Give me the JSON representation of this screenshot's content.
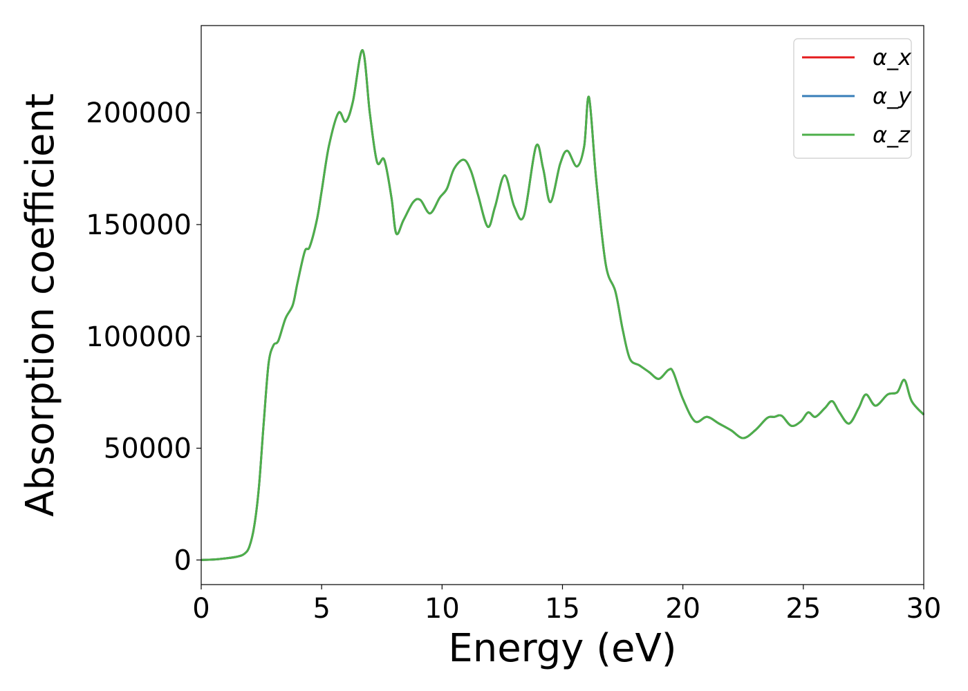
{
  "chart_data": {
    "type": "line",
    "xlabel": "Energy (eV)",
    "ylabel": "Absorption coefficient",
    "xlim": [
      0,
      30
    ],
    "ylim": [
      -11000,
      239000
    ],
    "xticks": [
      0,
      5,
      10,
      15,
      20,
      25,
      30
    ],
    "yticks": [
      0,
      50000,
      100000,
      150000,
      200000
    ],
    "grid": false,
    "legend": {
      "position": "top-right"
    },
    "x": [
      0,
      0.5,
      1.0,
      1.5,
      1.8,
      2.0,
      2.2,
      2.4,
      2.6,
      2.8,
      3.0,
      3.2,
      3.5,
      3.8,
      4.0,
      4.3,
      4.5,
      4.8,
      5.0,
      5.3,
      5.7,
      6.0,
      6.3,
      6.7,
      7.0,
      7.3,
      7.6,
      7.9,
      8.1,
      8.4,
      8.8,
      9.1,
      9.5,
      9.9,
      10.2,
      10.5,
      10.9,
      11.2,
      11.5,
      11.9,
      12.2,
      12.6,
      13.0,
      13.4,
      13.9,
      14.2,
      14.5,
      14.9,
      15.2,
      15.6,
      15.9,
      16.1,
      16.4,
      16.8,
      17.2,
      17.5,
      17.8,
      18.2,
      18.6,
      19.0,
      19.4,
      19.6,
      20.0,
      20.5,
      21.0,
      21.5,
      22.0,
      22.5,
      23.0,
      23.5,
      23.8,
      24.1,
      24.5,
      24.9,
      25.2,
      25.5,
      25.9,
      26.2,
      26.5,
      26.9,
      27.3,
      27.6,
      28.0,
      28.5,
      28.9,
      29.2,
      29.5,
      30.0
    ],
    "series": [
      {
        "name": "α_x",
        "color": "#e41a1c",
        "values": [
          0,
          200,
          700,
          1500,
          2800,
          6000,
          15000,
          33000,
          62000,
          88000,
          96000,
          98000,
          108000,
          114000,
          124000,
          138000,
          140000,
          152000,
          165000,
          185000,
          200000,
          196000,
          205000,
          228000,
          200000,
          178000,
          179000,
          162000,
          146000,
          152000,
          160000,
          161000,
          155000,
          162000,
          166000,
          175000,
          179000,
          174000,
          163000,
          149000,
          158000,
          172000,
          158000,
          154000,
          185000,
          175000,
          160000,
          177000,
          183000,
          176000,
          185000,
          207000,
          170000,
          132000,
          120000,
          103000,
          90000,
          87000,
          84000,
          81000,
          85000,
          84000,
          72000,
          62000,
          64000,
          61000,
          58000,
          54500,
          58000,
          63500,
          64000,
          64500,
          60000,
          62000,
          66000,
          64000,
          68000,
          71000,
          66000,
          61000,
          68000,
          74000,
          69000,
          74000,
          75000,
          80500,
          71000,
          65000
        ]
      },
      {
        "name": "α_y",
        "color": "#377eb8",
        "values": [
          0,
          200,
          700,
          1500,
          2800,
          6000,
          15000,
          33000,
          62000,
          88000,
          96000,
          98000,
          108000,
          114000,
          124000,
          138000,
          140000,
          152000,
          165000,
          185000,
          200000,
          196000,
          205000,
          228000,
          200000,
          178000,
          179000,
          162000,
          146000,
          152000,
          160000,
          161000,
          155000,
          162000,
          166000,
          175000,
          179000,
          174000,
          163000,
          149000,
          158000,
          172000,
          158000,
          154000,
          185000,
          175000,
          160000,
          177000,
          183000,
          176000,
          185000,
          207000,
          170000,
          132000,
          120000,
          103000,
          90000,
          87000,
          84000,
          81000,
          85000,
          84000,
          72000,
          62000,
          64000,
          61000,
          58000,
          54500,
          58000,
          63500,
          64000,
          64500,
          60000,
          62000,
          66000,
          64000,
          68000,
          71000,
          66000,
          61000,
          68000,
          74000,
          69000,
          74000,
          75000,
          80500,
          71000,
          65000
        ]
      },
      {
        "name": "α_z",
        "color": "#4daf4a",
        "values": [
          0,
          200,
          700,
          1500,
          2800,
          6000,
          15000,
          33000,
          62000,
          88000,
          96000,
          98000,
          108000,
          114000,
          124000,
          138000,
          140000,
          152000,
          165000,
          185000,
          200000,
          196000,
          205000,
          228000,
          200000,
          178000,
          179000,
          162000,
          146000,
          152000,
          160000,
          161000,
          155000,
          162000,
          166000,
          175000,
          179000,
          174000,
          163000,
          149000,
          158000,
          172000,
          158000,
          154000,
          185000,
          175000,
          160000,
          177000,
          183000,
          176000,
          185000,
          207000,
          170000,
          132000,
          120000,
          103000,
          90000,
          87000,
          84000,
          81000,
          85000,
          84000,
          72000,
          62000,
          64000,
          61000,
          58000,
          54500,
          58000,
          63500,
          64000,
          64500,
          60000,
          62000,
          66000,
          64000,
          68000,
          71000,
          66000,
          61000,
          68000,
          74000,
          69000,
          74000,
          75000,
          80500,
          71000,
          65000
        ]
      }
    ]
  }
}
